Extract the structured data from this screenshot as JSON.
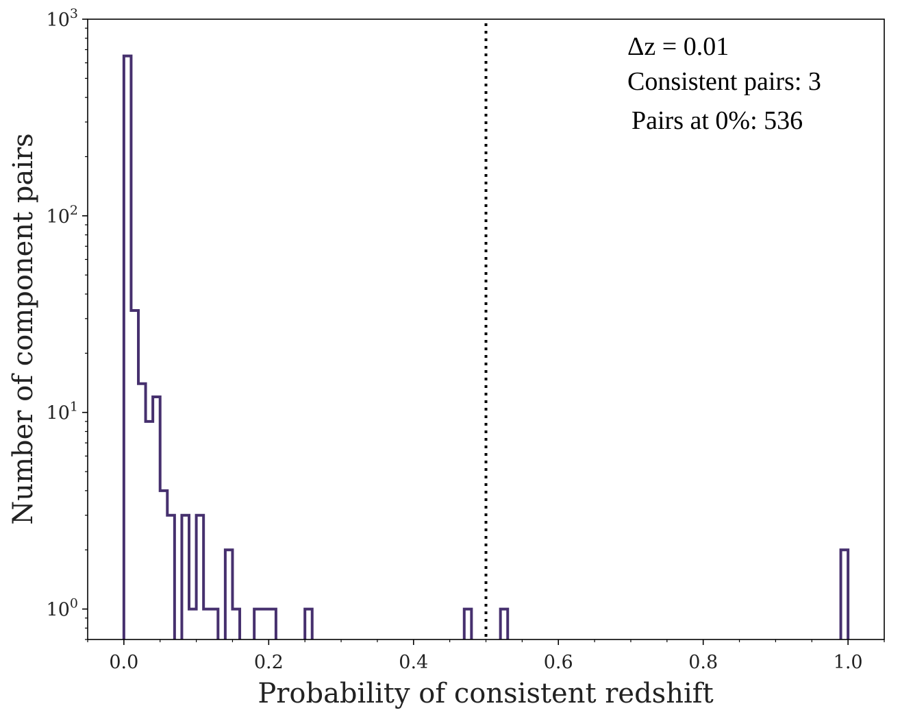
{
  "chart_data": {
    "type": "bar",
    "xlabel": "Probability of consistent redshift",
    "ylabel": "Number of component pairs",
    "xlim": [
      -0.05,
      1.05
    ],
    "ylim": [
      0.7,
      1000
    ],
    "yscale": "log",
    "grid": false,
    "histtype": "step",
    "line_color": "#46306e",
    "x_ticks": [
      {
        "value": 0.0,
        "label": "0.0"
      },
      {
        "value": 0.2,
        "label": "0.2"
      },
      {
        "value": 0.4,
        "label": "0.4"
      },
      {
        "value": 0.6,
        "label": "0.6"
      },
      {
        "value": 0.8,
        "label": "0.8"
      },
      {
        "value": 1.0,
        "label": "1.0"
      }
    ],
    "y_ticks": [
      {
        "value": 1,
        "base": "10",
        "exp": "0"
      },
      {
        "value": 10,
        "base": "10",
        "exp": "1"
      },
      {
        "value": 100,
        "base": "10",
        "exp": "2"
      },
      {
        "value": 1000,
        "base": "10",
        "exp": "3"
      }
    ],
    "bin_width": 0.01,
    "bins": [
      {
        "x": 0.0,
        "count": 650
      },
      {
        "x": 0.01,
        "count": 33
      },
      {
        "x": 0.02,
        "count": 14
      },
      {
        "x": 0.03,
        "count": 9
      },
      {
        "x": 0.04,
        "count": 12
      },
      {
        "x": 0.05,
        "count": 4
      },
      {
        "x": 0.06,
        "count": 3
      },
      {
        "x": 0.07,
        "count": 0
      },
      {
        "x": 0.08,
        "count": 3
      },
      {
        "x": 0.09,
        "count": 1
      },
      {
        "x": 0.1,
        "count": 3
      },
      {
        "x": 0.11,
        "count": 1
      },
      {
        "x": 0.12,
        "count": 1
      },
      {
        "x": 0.13,
        "count": 0
      },
      {
        "x": 0.14,
        "count": 2
      },
      {
        "x": 0.15,
        "count": 1
      },
      {
        "x": 0.16,
        "count": 0
      },
      {
        "x": 0.17,
        "count": 0
      },
      {
        "x": 0.18,
        "count": 1
      },
      {
        "x": 0.19,
        "count": 1
      },
      {
        "x": 0.2,
        "count": 1
      },
      {
        "x": 0.25,
        "count": 1
      },
      {
        "x": 0.47,
        "count": 1
      },
      {
        "x": 0.52,
        "count": 1
      },
      {
        "x": 0.99,
        "count": 2
      }
    ],
    "threshold_line": {
      "x": 0.5,
      "style": "dotted",
      "color": "#000000"
    },
    "annotations": [
      "Δz = 0.01",
      "Consistent pairs: 3",
      "Pairs at 0%: 536"
    ]
  }
}
